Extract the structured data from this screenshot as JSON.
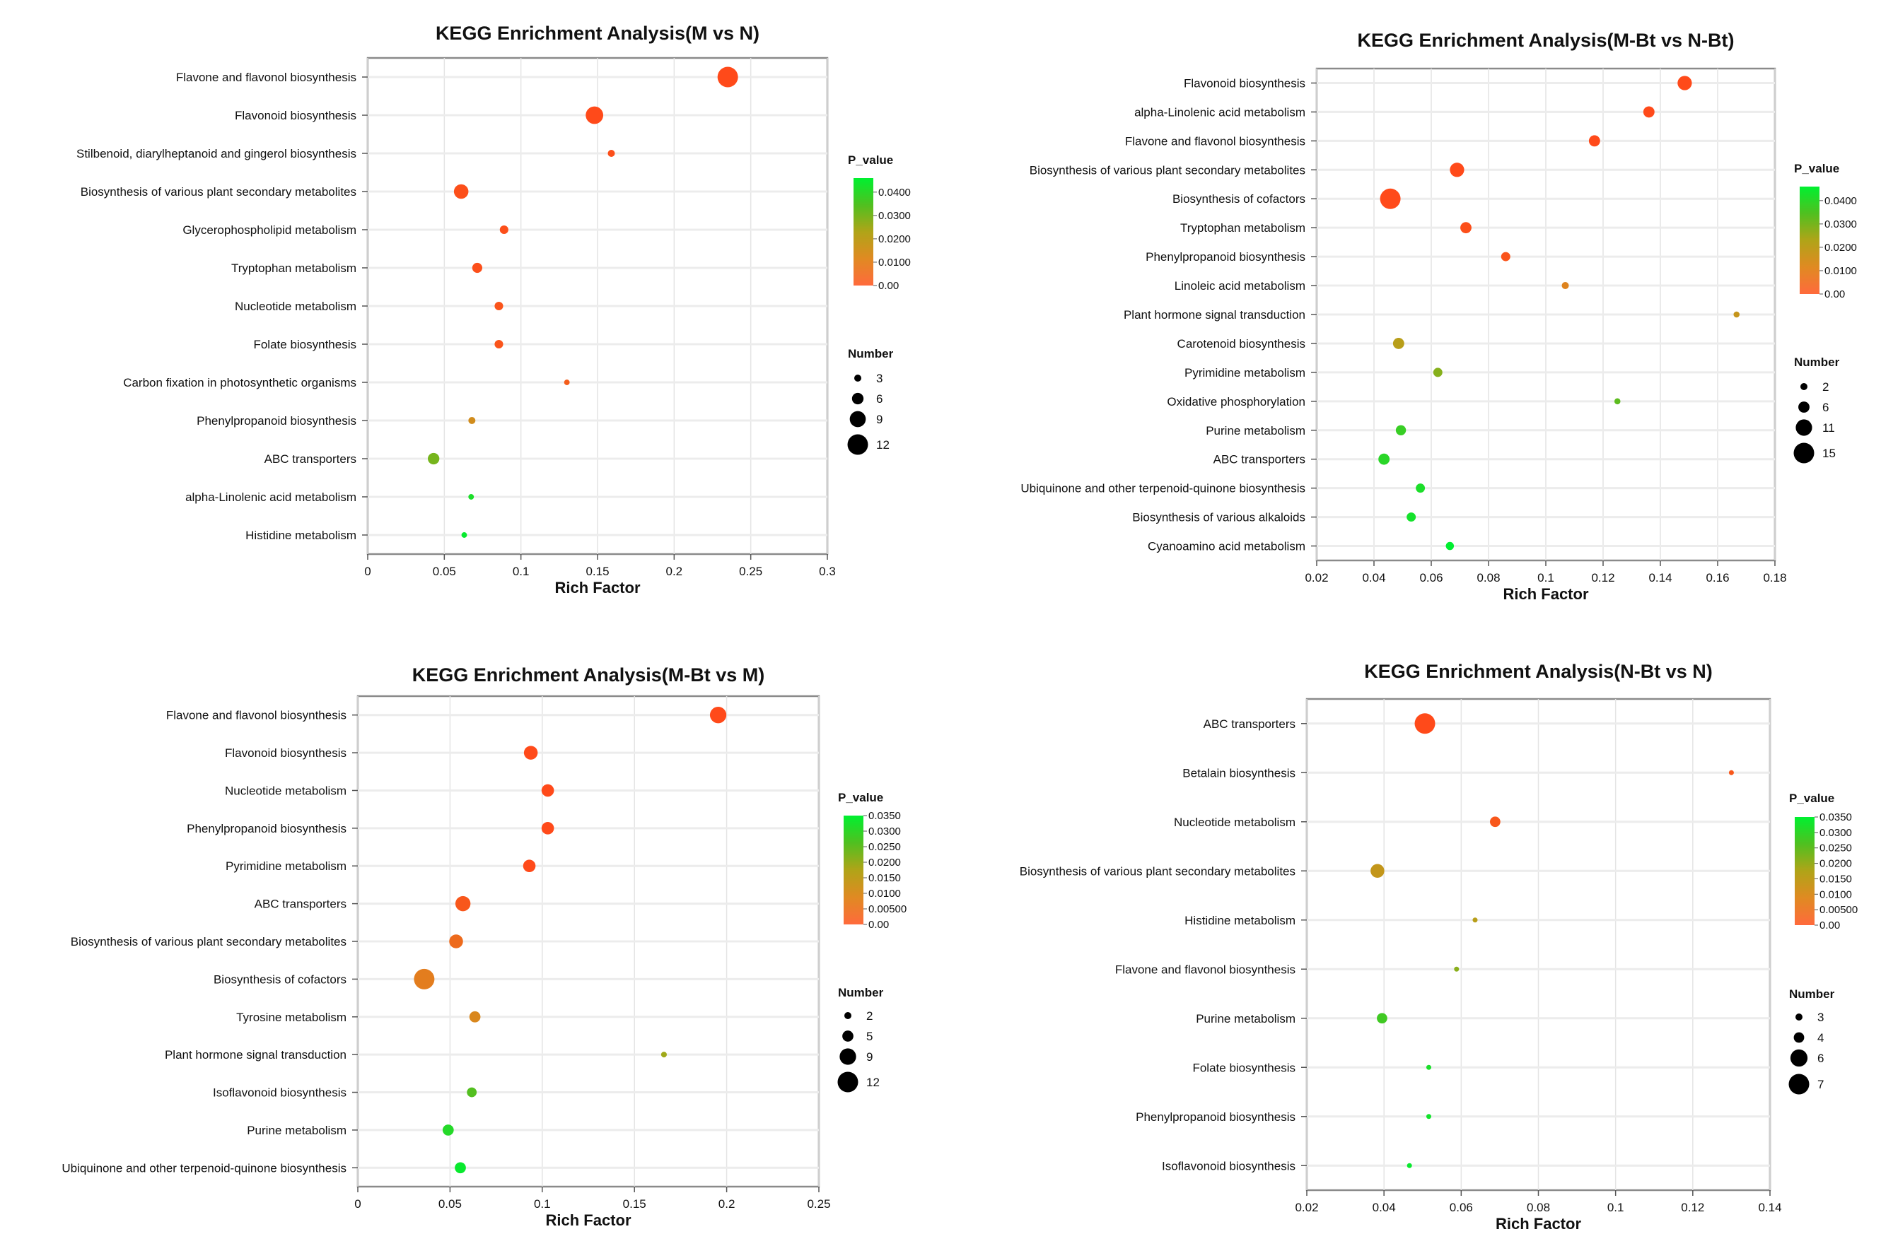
{
  "chart_data": [
    {
      "type": "scatter",
      "title": "KEGG Enrichment Analysis(M vs N)",
      "xlabel": "Rich Factor",
      "ylabel": "",
      "xlim": [
        0,
        0.3
      ],
      "xticks": [
        0,
        0.05,
        0.1,
        0.15,
        0.2,
        0.25,
        0.3
      ],
      "xtick_labels": [
        "0",
        "0.05",
        "0.1",
        "0.15",
        "0.2",
        "0.25",
        "0.3"
      ],
      "grid": true,
      "color_legend": {
        "title": "P_value",
        "max": 0.046,
        "ticks": [
          0.04,
          0.03,
          0.02,
          0.01,
          0
        ],
        "tick_labels": [
          "0.0400",
          "0.0300",
          "0.0200",
          "0.0100",
          "0.00"
        ]
      },
      "size_legend": {
        "title": "Number",
        "values": [
          3,
          6,
          9,
          12
        ]
      },
      "points": [
        {
          "pathway": "Flavone and flavonol biosynthesis",
          "rich_factor": 0.235,
          "number": 12,
          "p_value": 0.0
        },
        {
          "pathway": "Flavonoid biosynthesis",
          "rich_factor": 0.148,
          "number": 10,
          "p_value": 0.0
        },
        {
          "pathway": "Stilbenoid, diarylheptanoid and gingerol biosynthesis",
          "rich_factor": 0.159,
          "number": 3,
          "p_value": 0.001
        },
        {
          "pathway": "Biosynthesis of various plant secondary metabolites",
          "rich_factor": 0.061,
          "number": 8,
          "p_value": 0.001
        },
        {
          "pathway": "Glycerophospholipid metabolism",
          "rich_factor": 0.089,
          "number": 4,
          "p_value": 0.001
        },
        {
          "pathway": "Tryptophan metabolism",
          "rich_factor": 0.0715,
          "number": 5,
          "p_value": 0.001
        },
        {
          "pathway": "Nucleotide metabolism",
          "rich_factor": 0.0856,
          "number": 4,
          "p_value": 0.002
        },
        {
          "pathway": "Folate biosynthesis",
          "rich_factor": 0.0856,
          "number": 4,
          "p_value": 0.002
        },
        {
          "pathway": "Carbon fixation in photosynthetic organisms",
          "rich_factor": 0.13,
          "number": 2,
          "p_value": 0.004
        },
        {
          "pathway": "Phenylpropanoid biosynthesis",
          "rich_factor": 0.068,
          "number": 3,
          "p_value": 0.015
        },
        {
          "pathway": "ABC transporters",
          "rich_factor": 0.043,
          "number": 6,
          "p_value": 0.03
        },
        {
          "pathway": "alpha-Linolenic acid metabolism",
          "rich_factor": 0.0675,
          "number": 2,
          "p_value": 0.042
        },
        {
          "pathway": "Histidine metabolism",
          "rich_factor": 0.063,
          "number": 2,
          "p_value": 0.045
        }
      ]
    },
    {
      "type": "scatter",
      "title": "KEGG Enrichment Analysis(M-Bt vs N-Bt)",
      "xlabel": "Rich Factor",
      "ylabel": "",
      "xlim": [
        0.02,
        0.18
      ],
      "xticks": [
        0.02,
        0.04,
        0.06,
        0.08,
        0.1,
        0.12,
        0.14,
        0.16,
        0.18
      ],
      "xtick_labels": [
        "0.02",
        "0.04",
        "0.06",
        "0.08",
        "0.1",
        "0.12",
        "0.14",
        "0.16",
        "0.18"
      ],
      "grid": true,
      "color_legend": {
        "title": "P_value",
        "max": 0.046,
        "ticks": [
          0.04,
          0.03,
          0.02,
          0.01,
          0
        ],
        "tick_labels": [
          "0.0400",
          "0.0300",
          "0.0200",
          "0.0100",
          "0.00"
        ]
      },
      "size_legend": {
        "title": "Number",
        "values": [
          2,
          6,
          11,
          15
        ]
      },
      "points": [
        {
          "pathway": "Flavonoid biosynthesis",
          "rich_factor": 0.1485,
          "number": 9,
          "p_value": 0.0
        },
        {
          "pathway": "alpha-Linolenic acid metabolism",
          "rich_factor": 0.136,
          "number": 6,
          "p_value": 0.0
        },
        {
          "pathway": "Flavone and flavonol biosynthesis",
          "rich_factor": 0.117,
          "number": 6,
          "p_value": 0.0
        },
        {
          "pathway": "Biosynthesis of various plant secondary metabolites",
          "rich_factor": 0.069,
          "number": 9,
          "p_value": 0.0
        },
        {
          "pathway": "Biosynthesis of cofactors",
          "rich_factor": 0.0457,
          "number": 15,
          "p_value": 0.0
        },
        {
          "pathway": "Tryptophan metabolism",
          "rich_factor": 0.0721,
          "number": 6,
          "p_value": 0.001
        },
        {
          "pathway": "Phenylpropanoid biosynthesis",
          "rich_factor": 0.086,
          "number": 4,
          "p_value": 0.002
        },
        {
          "pathway": "Linoleic acid metabolism",
          "rich_factor": 0.1068,
          "number": 2,
          "p_value": 0.012
        },
        {
          "pathway": "Plant hormone signal transduction",
          "rich_factor": 0.1666,
          "number": 1,
          "p_value": 0.018
        },
        {
          "pathway": "Carotenoid biosynthesis",
          "rich_factor": 0.0486,
          "number": 6,
          "p_value": 0.021
        },
        {
          "pathway": "Pyrimidine metabolism",
          "rich_factor": 0.0623,
          "number": 4,
          "p_value": 0.028
        },
        {
          "pathway": "Oxidative phosphorylation",
          "rich_factor": 0.125,
          "number": 1,
          "p_value": 0.033
        },
        {
          "pathway": "Purine metabolism",
          "rich_factor": 0.0494,
          "number": 5,
          "p_value": 0.038
        },
        {
          "pathway": "ABC transporters",
          "rich_factor": 0.0435,
          "number": 6,
          "p_value": 0.04
        },
        {
          "pathway": "Ubiquinone and other terpenoid-quinone biosynthesis",
          "rich_factor": 0.0562,
          "number": 4,
          "p_value": 0.042
        },
        {
          "pathway": "Biosynthesis of various alkaloids",
          "rich_factor": 0.053,
          "number": 4,
          "p_value": 0.043
        },
        {
          "pathway": "Cyanoamino acid metabolism",
          "rich_factor": 0.0665,
          "number": 3,
          "p_value": 0.046
        }
      ]
    },
    {
      "type": "scatter",
      "title": "KEGG Enrichment Analysis(M-Bt vs M)",
      "xlabel": "Rich Factor",
      "ylabel": "",
      "xlim": [
        0,
        0.25
      ],
      "xticks": [
        0,
        0.05,
        0.1,
        0.15,
        0.2,
        0.25
      ],
      "xtick_labels": [
        "0",
        "0.05",
        "0.1",
        "0.15",
        "0.2",
        "0.25"
      ],
      "grid": true,
      "color_legend": {
        "title": "P_value",
        "max": 0.035,
        "ticks": [
          0.035,
          0.03,
          0.025,
          0.02,
          0.015,
          0.01,
          0.005,
          0
        ],
        "tick_labels": [
          "0.0350",
          "0.0300",
          "0.0250",
          "0.0200",
          "0.0150",
          "0.0100",
          "0.00500",
          "0.00"
        ]
      },
      "size_legend": {
        "title": "Number",
        "values": [
          2,
          5,
          9,
          12
        ]
      },
      "points": [
        {
          "pathway": "Flavone and flavonol biosynthesis",
          "rich_factor": 0.1954,
          "number": 9,
          "p_value": 0.0
        },
        {
          "pathway": "Flavonoid biosynthesis",
          "rich_factor": 0.0938,
          "number": 7,
          "p_value": 0.0
        },
        {
          "pathway": "Nucleotide metabolism",
          "rich_factor": 0.103,
          "number": 6,
          "p_value": 0.0
        },
        {
          "pathway": "Phenylpropanoid biosynthesis",
          "rich_factor": 0.103,
          "number": 6,
          "p_value": 0.0
        },
        {
          "pathway": "Pyrimidine metabolism",
          "rich_factor": 0.093,
          "number": 6,
          "p_value": 0.0
        },
        {
          "pathway": "ABC transporters",
          "rich_factor": 0.057,
          "number": 8,
          "p_value": 0.002
        },
        {
          "pathway": "Biosynthesis of various plant secondary metabolites",
          "rich_factor": 0.0533,
          "number": 7,
          "p_value": 0.005
        },
        {
          "pathway": "Biosynthesis of cofactors",
          "rich_factor": 0.036,
          "number": 12,
          "p_value": 0.008
        },
        {
          "pathway": "Tyrosine metabolism",
          "rich_factor": 0.0635,
          "number": 5,
          "p_value": 0.01
        },
        {
          "pathway": "Plant hormone signal transduction",
          "rich_factor": 0.166,
          "number": 1,
          "p_value": 0.019
        },
        {
          "pathway": "Isoflavonoid biosynthesis",
          "rich_factor": 0.0618,
          "number": 4,
          "p_value": 0.026
        },
        {
          "pathway": "Purine metabolism",
          "rich_factor": 0.049,
          "number": 5,
          "p_value": 0.031
        },
        {
          "pathway": "Ubiquinone and other terpenoid-quinone biosynthesis",
          "rich_factor": 0.0556,
          "number": 5,
          "p_value": 0.034
        }
      ]
    },
    {
      "type": "scatter",
      "title": "KEGG Enrichment Analysis(N-Bt vs N)",
      "xlabel": "Rich Factor",
      "ylabel": "",
      "xlim": [
        0.02,
        0.14
      ],
      "xticks": [
        0.02,
        0.04,
        0.06,
        0.08,
        0.1,
        0.12,
        0.14
      ],
      "xtick_labels": [
        "0.02",
        "0.04",
        "0.06",
        "0.08",
        "0.1",
        "0.12",
        "0.14"
      ],
      "grid": true,
      "color_legend": {
        "title": "P_value",
        "max": 0.035,
        "ticks": [
          0.035,
          0.03,
          0.025,
          0.02,
          0.015,
          0.01,
          0.005,
          0
        ],
        "tick_labels": [
          "0.0350",
          "0.0300",
          "0.0250",
          "0.0200",
          "0.0150",
          "0.0100",
          "0.00500",
          "0.00"
        ]
      },
      "size_legend": {
        "title": "Number",
        "values": [
          3,
          4,
          6,
          7
        ]
      },
      "points": [
        {
          "pathway": "ABC transporters",
          "rich_factor": 0.0506,
          "number": 7,
          "p_value": 0.0
        },
        {
          "pathway": "Betalain biosynthesis",
          "rich_factor": 0.13,
          "number": 1,
          "p_value": 0.002
        },
        {
          "pathway": "Nucleotide metabolism",
          "rich_factor": 0.0688,
          "number": 4,
          "p_value": 0.002
        },
        {
          "pathway": "Biosynthesis of various plant secondary metabolites",
          "rich_factor": 0.0383,
          "number": 5,
          "p_value": 0.014
        },
        {
          "pathway": "Histidine metabolism",
          "rich_factor": 0.0636,
          "number": 2,
          "p_value": 0.016
        },
        {
          "pathway": "Flavone and flavonol biosynthesis",
          "rich_factor": 0.0588,
          "number": 2,
          "p_value": 0.021
        },
        {
          "pathway": "Purine metabolism",
          "rich_factor": 0.0395,
          "number": 4,
          "p_value": 0.028
        },
        {
          "pathway": "Folate biosynthesis",
          "rich_factor": 0.0516,
          "number": 2,
          "p_value": 0.032
        },
        {
          "pathway": "Phenylpropanoid biosynthesis",
          "rich_factor": 0.0516,
          "number": 2,
          "p_value": 0.033
        },
        {
          "pathway": "Isoflavonoid biosynthesis",
          "rich_factor": 0.0466,
          "number": 2,
          "p_value": 0.034
        }
      ]
    }
  ],
  "colors": {
    "low_p": "#ff4a1a",
    "mid_p": "#b8a016",
    "high_p": "#00ee30"
  }
}
